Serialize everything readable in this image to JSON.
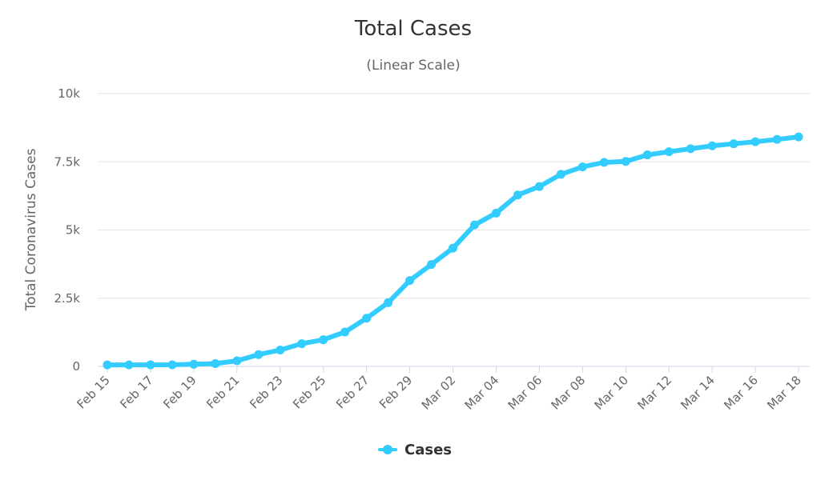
{
  "chart_data": {
    "type": "line",
    "title": "Total Cases",
    "subtitle": "(Linear Scale)",
    "xlabel": "",
    "ylabel": "Total Coronavirus Cases",
    "ylim": [
      0,
      10000
    ],
    "yticks": [
      {
        "value": 0,
        "label": "0"
      },
      {
        "value": 2500,
        "label": "2.5k"
      },
      {
        "value": 5000,
        "label": "5k"
      },
      {
        "value": 7500,
        "label": "7.5k"
      },
      {
        "value": 10000,
        "label": "10k"
      }
    ],
    "categories": [
      "Feb 15",
      "Feb 16",
      "Feb 17",
      "Feb 18",
      "Feb 19",
      "Feb 20",
      "Feb 21",
      "Feb 22",
      "Feb 23",
      "Feb 24",
      "Feb 25",
      "Feb 26",
      "Feb 27",
      "Feb 28",
      "Feb 29",
      "Mar 01",
      "Mar 02",
      "Mar 03",
      "Mar 04",
      "Mar 05",
      "Mar 06",
      "Mar 07",
      "Mar 08",
      "Mar 09",
      "Mar 10",
      "Mar 11",
      "Mar 12",
      "Mar 13",
      "Mar 14",
      "Mar 15",
      "Mar 16",
      "Mar 17",
      "Mar 18"
    ],
    "xtick_labels": [
      "Feb 15",
      "Feb 17",
      "Feb 19",
      "Feb 21",
      "Feb 23",
      "Feb 25",
      "Feb 27",
      "Feb 29",
      "Mar 02",
      "Mar 04",
      "Mar 06",
      "Mar 08",
      "Mar 10",
      "Mar 12",
      "Mar 14",
      "Mar 16",
      "Mar 18"
    ],
    "series": [
      {
        "name": "Cases",
        "color": "#33ccff",
        "values": [
          56,
          56,
          57,
          58,
          79,
          104,
          204,
          433,
          602,
          833,
          977,
          1261,
          1766,
          2337,
          3150,
          3736,
          4335,
          5186,
          5621,
          6284,
          6593,
          7041,
          7314,
          7478,
          7513,
          7755,
          7869,
          7979,
          8086,
          8162,
          8236,
          8320,
          8413
        ]
      }
    ],
    "legend": {
      "position": "bottom-center",
      "label": "Cases"
    }
  }
}
